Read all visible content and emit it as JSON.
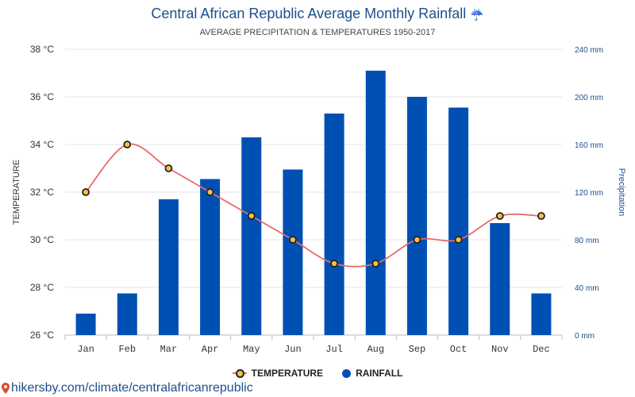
{
  "title": "Central African Republic Average Monthly Rainfall",
  "title_icon": "umbrella-icon",
  "subtitle": "AVERAGE PRECIPITATION & TEMPERATURES 1950-2017",
  "footer": {
    "link": "hikersby.com/climate/centralafricanrepublic",
    "icon": "location-pin-icon"
  },
  "legend": {
    "temperature": "TEMPERATURE",
    "rainfall": "RAINFALL"
  },
  "colors": {
    "temperature_line": "#e86a6a",
    "temperature_marker": "#f6c045",
    "rainfall_bar": "#0050b4",
    "axis_text": "#333333",
    "right_axis_text": "#1f4e8c"
  },
  "chart_data": {
    "type": "bar",
    "categories": [
      "Jan",
      "Feb",
      "Mar",
      "Apr",
      "May",
      "Jun",
      "Jul",
      "Aug",
      "Sep",
      "Oct",
      "Nov",
      "Dec"
    ],
    "series": [
      {
        "name": "TEMPERATURE",
        "type": "line",
        "axis": "left",
        "values": [
          32,
          34,
          33,
          32,
          31,
          30,
          29,
          29,
          30,
          30,
          31,
          31
        ]
      },
      {
        "name": "RAINFALL",
        "type": "bar",
        "axis": "right",
        "values": [
          18,
          35,
          114,
          131,
          166,
          139,
          186,
          222,
          200,
          191,
          94,
          35
        ]
      }
    ],
    "ylabel": "TEMPERATURE",
    "y2label": "Precipitation",
    "ylim": [
      26,
      38
    ],
    "y2lim": [
      0,
      240
    ],
    "yticks": [
      "26 °C",
      "28 °C",
      "30 °C",
      "32 °C",
      "34 °C",
      "36 °C",
      "38 °C"
    ],
    "y2ticks": [
      "0 mm",
      "40 mm",
      "80 mm",
      "120 mm",
      "160 mm",
      "200 mm",
      "240 mm"
    ],
    "grid": true,
    "legend_position": "bottom-center"
  }
}
